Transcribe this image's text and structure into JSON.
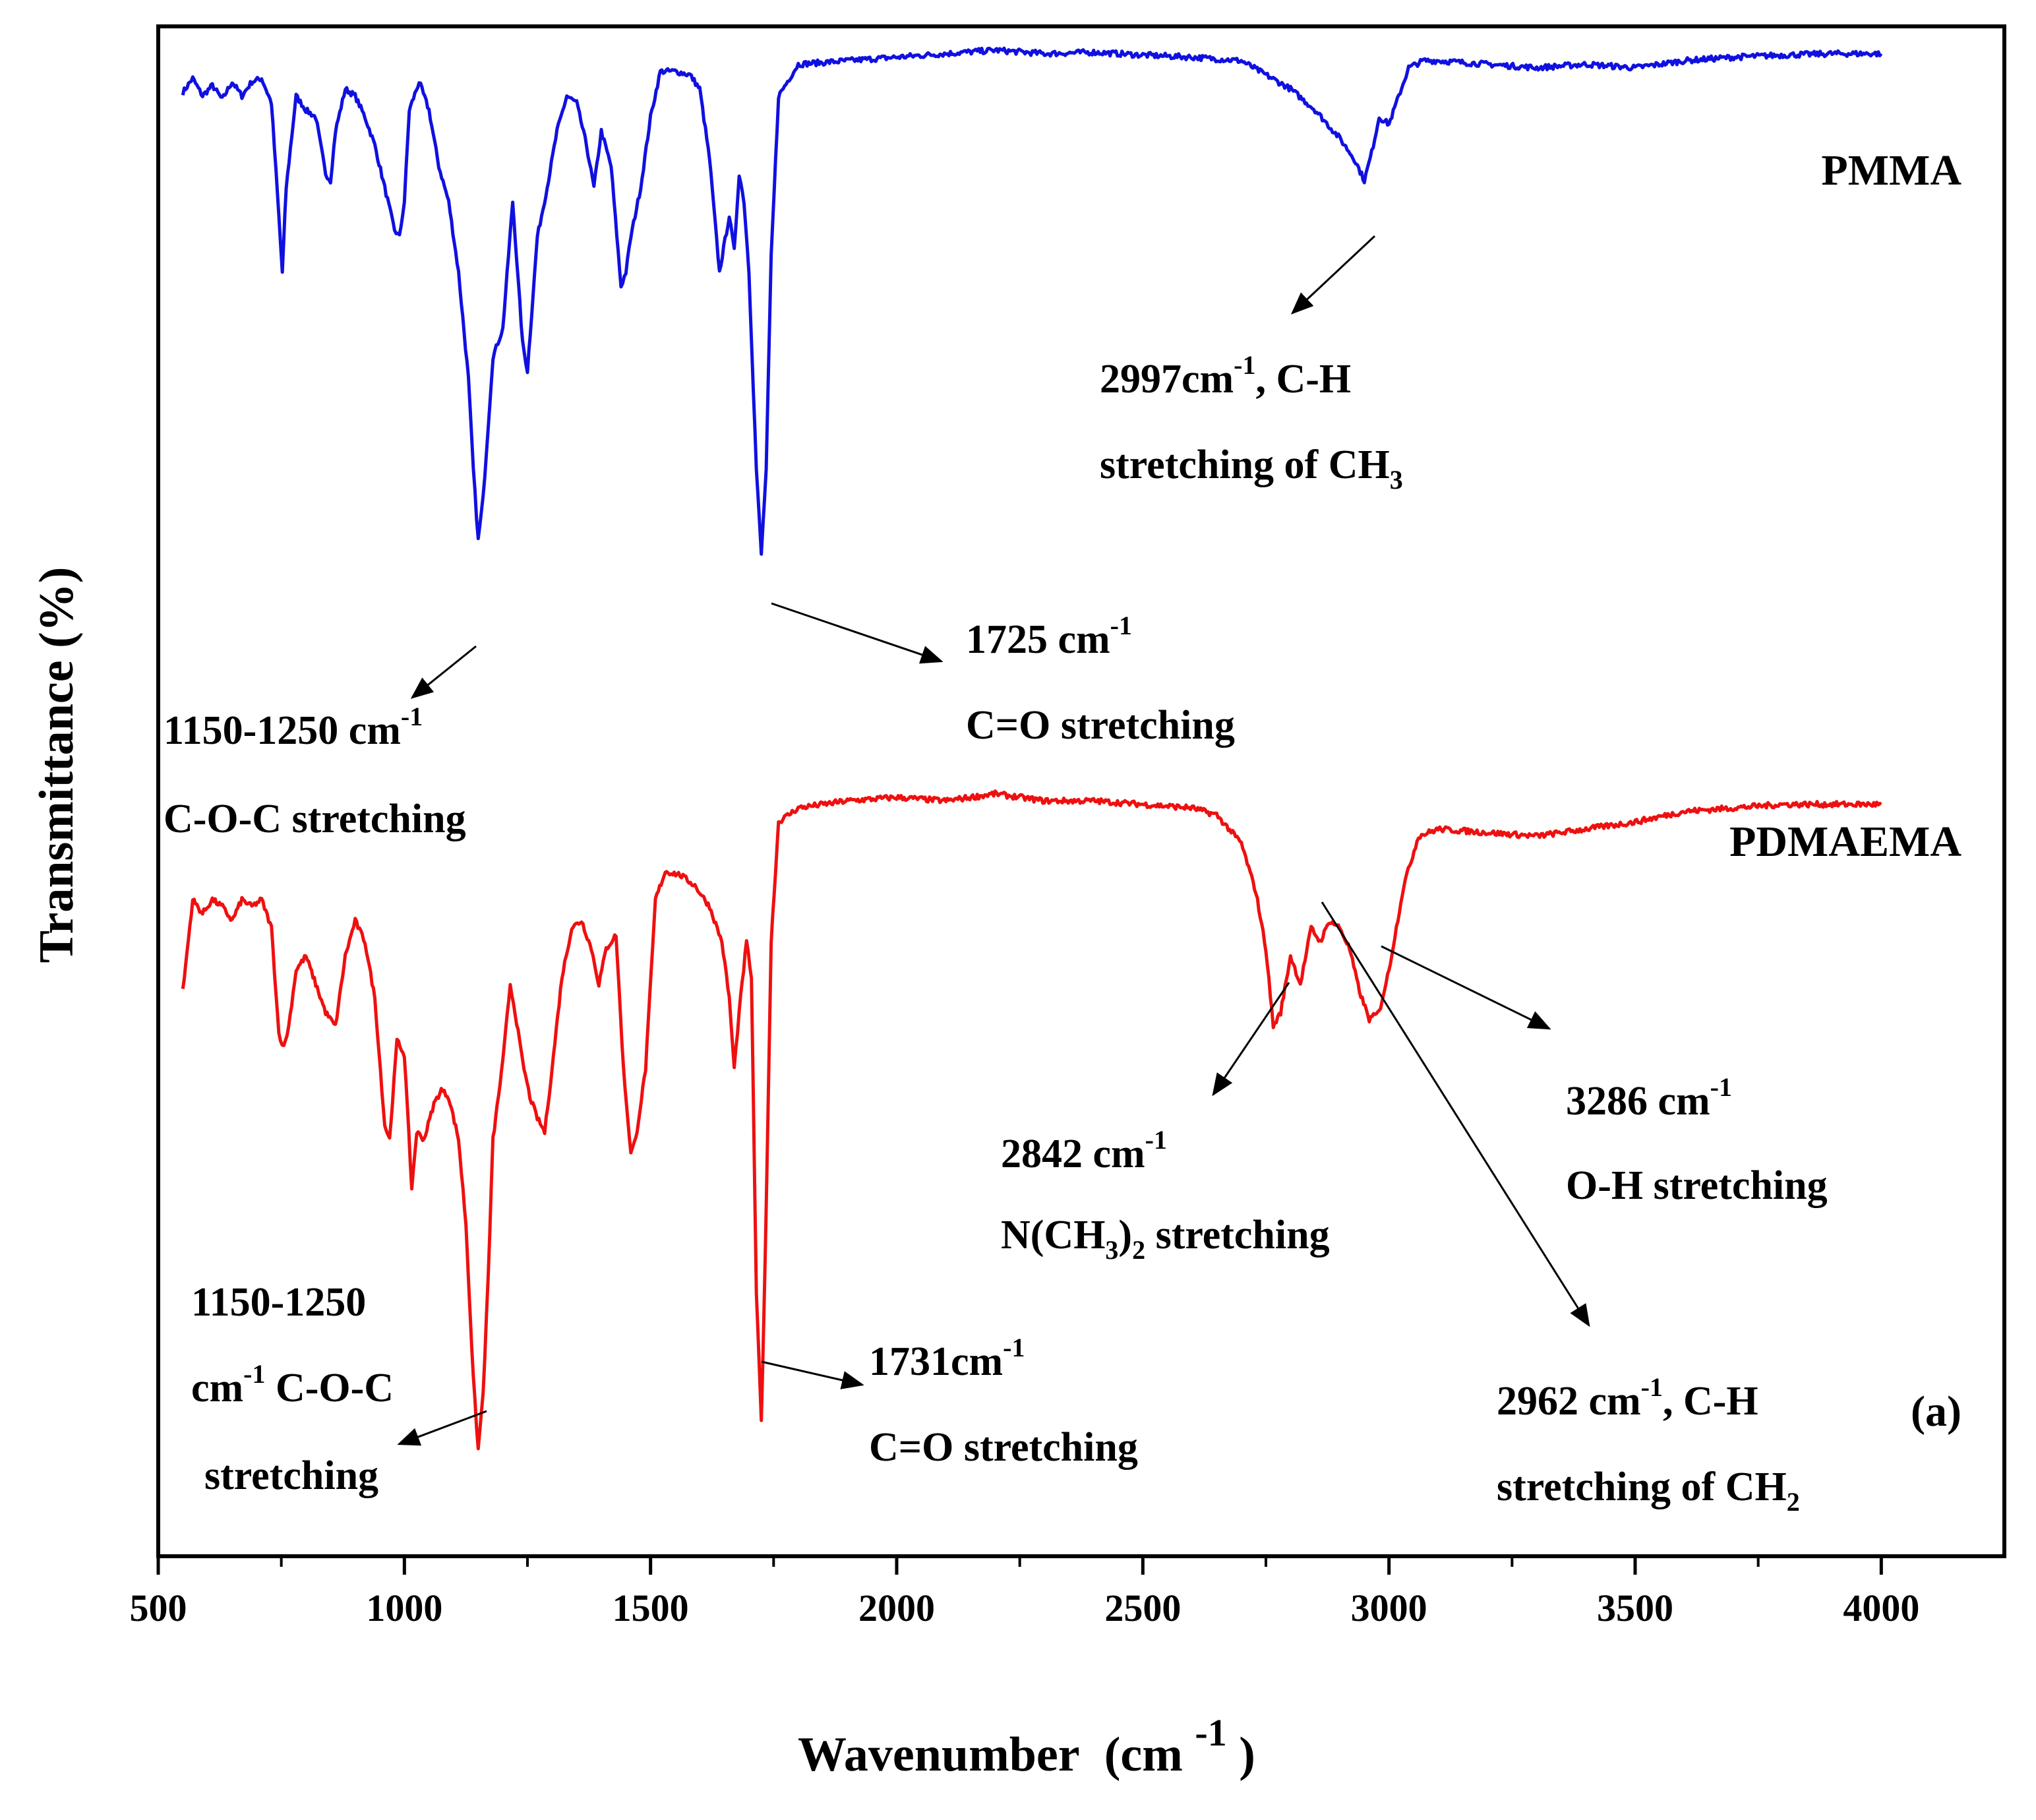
{
  "chart_data": {
    "type": "line",
    "title": "",
    "panel_label": "(a)",
    "xlabel": "Wavenumber",
    "xlabel_unit": "(cm",
    "xlabel_unit_sup": "-1",
    "xlabel_unit_close": ")",
    "ylabel": "Transmittance (%)",
    "xlim": [
      500,
      4250
    ],
    "x_ticks": [
      500,
      1000,
      1500,
      2000,
      2500,
      3000,
      3500,
      4000
    ],
    "y_ticks": [],
    "grid": false,
    "legend": "none",
    "series": [
      {
        "name": "PMMA",
        "color": "#1010e0",
        "y_offset": 1.05,
        "x": [
          550,
          570,
          590,
          610,
          630,
          650,
          670,
          690,
          710,
          730,
          745,
          752,
          760,
          780,
          800,
          820,
          840,
          850,
          860,
          880,
          900,
          920,
          940,
          960,
          980,
          990,
          1000,
          1010,
          1030,
          1050,
          1070,
          1090,
          1110,
          1130,
          1140,
          1150,
          1160,
          1170,
          1180,
          1190,
          1200,
          1220,
          1240,
          1250,
          1270,
          1290,
          1310,
          1330,
          1350,
          1370,
          1385,
          1400,
          1420,
          1440,
          1450,
          1460,
          1480,
          1500,
          1520,
          1550,
          1580,
          1600,
          1620,
          1640,
          1660,
          1670,
          1680,
          1690,
          1700,
          1715,
          1725,
          1735,
          1745,
          1760,
          1800,
          1900,
          2000,
          2100,
          2200,
          2300,
          2400,
          2500,
          2600,
          2700,
          2750,
          2800,
          2850,
          2900,
          2930,
          2950,
          2965,
          2980,
          3000,
          3020,
          3040,
          3070,
          3100,
          3200,
          3300,
          3400,
          3500,
          3600,
          3700,
          3800,
          3900,
          4000
        ],
        "y": [
          0.955,
          0.975,
          0.95,
          0.965,
          0.945,
          0.97,
          0.95,
          0.97,
          0.975,
          0.94,
          0.78,
          0.7,
          0.82,
          0.95,
          0.93,
          0.92,
          0.84,
          0.83,
          0.9,
          0.96,
          0.95,
          0.92,
          0.88,
          0.82,
          0.76,
          0.75,
          0.8,
          0.93,
          0.97,
          0.93,
          0.85,
          0.8,
          0.7,
          0.55,
          0.42,
          0.32,
          0.38,
          0.48,
          0.58,
          0.6,
          0.62,
          0.8,
          0.6,
          0.56,
          0.75,
          0.82,
          0.9,
          0.95,
          0.94,
          0.88,
          0.82,
          0.9,
          0.85,
          0.68,
          0.7,
          0.75,
          0.82,
          0.92,
          0.985,
          0.985,
          0.98,
          0.96,
          0.86,
          0.7,
          0.78,
          0.73,
          0.84,
          0.8,
          0.7,
          0.42,
          0.3,
          0.42,
          0.72,
          0.95,
          0.995,
          1.0,
          1.005,
          1.01,
          1.015,
          1.01,
          1.012,
          1.008,
          1.005,
          1.0,
          0.98,
          0.96,
          0.93,
          0.89,
          0.86,
          0.83,
          0.87,
          0.92,
          0.91,
          0.95,
          0.99,
          1.0,
          1.0,
          0.995,
          0.99,
          0.995,
          0.99,
          1.0,
          1.005,
          1.008,
          1.01,
          1.01
        ]
      },
      {
        "name": "PDMAEMA",
        "color": "#ee1010",
        "y_offset": 0.0,
        "x": [
          550,
          570,
          590,
          610,
          630,
          650,
          670,
          690,
          710,
          730,
          745,
          755,
          765,
          780,
          800,
          820,
          840,
          860,
          880,
          900,
          920,
          940,
          960,
          970,
          985,
          1000,
          1015,
          1025,
          1040,
          1060,
          1075,
          1090,
          1110,
          1125,
          1140,
          1150,
          1160,
          1170,
          1180,
          1200,
          1215,
          1225,
          1240,
          1255,
          1270,
          1285,
          1300,
          1320,
          1340,
          1360,
          1380,
          1395,
          1410,
          1430,
          1445,
          1460,
          1470,
          1490,
          1510,
          1530,
          1560,
          1590,
          1620,
          1645,
          1660,
          1670,
          1680,
          1695,
          1705,
          1715,
          1725,
          1733,
          1745,
          1760,
          1800,
          1900,
          2000,
          2100,
          2200,
          2300,
          2400,
          2500,
          2600,
          2650,
          2700,
          2730,
          2750,
          2765,
          2780,
          2800,
          2820,
          2842,
          2860,
          2880,
          2900,
          2920,
          2940,
          2960,
          2980,
          3000,
          3030,
          3060,
          3100,
          3200,
          3300,
          3400,
          3500,
          3600,
          3700,
          3800,
          3900,
          4000
        ],
        "y": [
          0.73,
          0.86,
          0.84,
          0.86,
          0.85,
          0.83,
          0.86,
          0.85,
          0.86,
          0.82,
          0.67,
          0.65,
          0.68,
          0.76,
          0.78,
          0.74,
          0.7,
          0.68,
          0.78,
          0.83,
          0.8,
          0.72,
          0.54,
          0.52,
          0.66,
          0.64,
          0.45,
          0.53,
          0.52,
          0.57,
          0.59,
          0.58,
          0.52,
          0.4,
          0.18,
          0.08,
          0.16,
          0.32,
          0.52,
          0.63,
          0.74,
          0.7,
          0.63,
          0.58,
          0.55,
          0.53,
          0.62,
          0.75,
          0.82,
          0.83,
          0.79,
          0.74,
          0.79,
          0.81,
          0.62,
          0.5,
          0.52,
          0.62,
          0.86,
          0.9,
          0.895,
          0.88,
          0.85,
          0.8,
          0.72,
          0.62,
          0.7,
          0.8,
          0.75,
          0.3,
          0.12,
          0.35,
          0.8,
          0.97,
          0.99,
          1.0,
          1.005,
          1.0,
          1.01,
          1.0,
          1.0,
          0.995,
          0.99,
          0.98,
          0.94,
          0.87,
          0.79,
          0.68,
          0.7,
          0.78,
          0.74,
          0.82,
          0.8,
          0.83,
          0.82,
          0.79,
          0.73,
          0.69,
          0.7,
          0.76,
          0.88,
          0.95,
          0.96,
          0.955,
          0.95,
          0.96,
          0.97,
          0.985,
          0.99,
          0.995,
          0.995,
          0.995
        ]
      }
    ],
    "annotations": [
      {
        "line1": "2997cm",
        "line1_sup": "-1",
        "line1_tail": ", C-H",
        "line2": "stretching of CH",
        "line2_sub": "3"
      },
      {
        "line1": "1725 cm",
        "line1_sup": "-1",
        "line2": "C=O stretching"
      },
      {
        "line1": "1150-1250 cm",
        "line1_sup": "-1",
        "line2": "C-O-C stretching"
      },
      {
        "line1": "2842 cm",
        "line1_sup": "-1",
        "line2": "N(CH",
        "line2_sub": "3",
        "line2_tail": ")",
        "line2_sub2": "2",
        "line2_tail2": " stretching"
      },
      {
        "line1": "3286 cm",
        "line1_sup": "-1",
        "line2": "O-H stretching"
      },
      {
        "line1": "1150-1250",
        "line2": "cm",
        "line2_sup": "-1",
        "line2_tail": " C-O-C",
        "line3": "stretching"
      },
      {
        "line1": "1731cm",
        "line1_sup": "-1",
        "line2": "C=O stretching"
      },
      {
        "line1": "2962 cm",
        "line1_sup": "-1",
        "line1_tail": ", C-H",
        "line2": "stretching of CH",
        "line2_sub": "2"
      }
    ]
  }
}
